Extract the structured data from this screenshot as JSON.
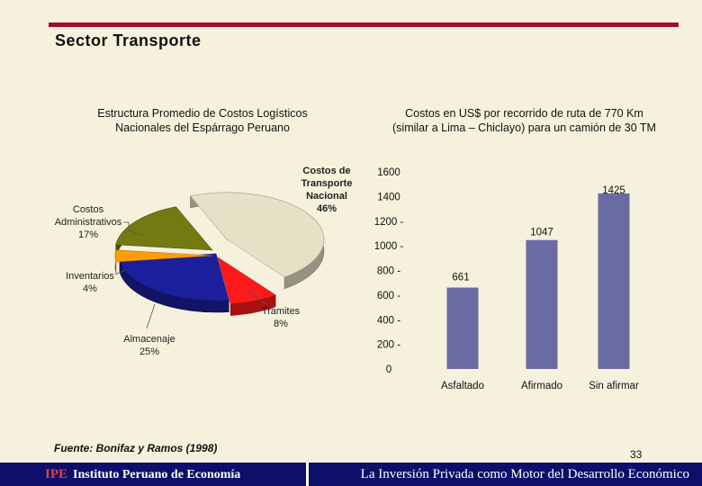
{
  "slide": {
    "title": "Sector Transporte",
    "source": "Fuente: Bonifaz y Ramos (1998)",
    "page_number": "33",
    "footer_org_acronym": "IPE",
    "footer_org_name": "Instituto Peruano de Economía",
    "footer_tagline": "La Inversión Privada como Motor del Desarrollo Económico"
  },
  "colors": {
    "accent": "#9c1029",
    "footer": "#0d0f6b",
    "bar": "#6b6ba3",
    "slice_transporte": "#e5e0c6",
    "slice_tramites": "#ff1a1a",
    "slice_almacenaje": "#1b1f9c",
    "slice_inventarios": "#ff9d0a",
    "slice_administrativos": "#737a12"
  },
  "chart_data": [
    {
      "type": "pie",
      "title_line1": "Estructura Promedio de Costos Logísticos",
      "title_line2": "Nacionales del Espárrago Peruano",
      "slices": [
        {
          "key": "transporte",
          "label_lines": [
            "Costos de",
            "Transporte",
            "Nacional"
          ],
          "value": 46,
          "value_label": "46%"
        },
        {
          "key": "tramites",
          "label_lines": [
            "Tramites"
          ],
          "value": 8,
          "value_label": "8%"
        },
        {
          "key": "almacenaje",
          "label_lines": [
            "Almacenaje"
          ],
          "value": 25,
          "value_label": "25%"
        },
        {
          "key": "inventarios",
          "label_lines": [
            "Inventarios"
          ],
          "value": 4,
          "value_label": "4%"
        },
        {
          "key": "administrativos",
          "label_lines": [
            "Costos",
            "Administrativos"
          ],
          "value": 17,
          "value_label": "17%"
        }
      ]
    },
    {
      "type": "bar",
      "title_line1": "Costos en US$ por recorrido de ruta de 770 Km",
      "title_line2": "(similar a Lima – Chiclayo) para un camión de 30 TM",
      "categories": [
        "Asfaltado",
        "Afirmado",
        "Sin afirmar"
      ],
      "values": [
        661,
        1047,
        1425
      ],
      "value_labels": [
        "661",
        "1047",
        "1425"
      ],
      "ylim": [
        0,
        1600
      ],
      "yticks": [
        0,
        200,
        400,
        600,
        800,
        1000,
        1200,
        1400,
        1600
      ],
      "ytick_labels": [
        "0",
        "200 -",
        "400 -",
        "600 -",
        "800 -",
        "1000 -",
        "1200 -",
        "1400",
        "1600"
      ]
    }
  ]
}
